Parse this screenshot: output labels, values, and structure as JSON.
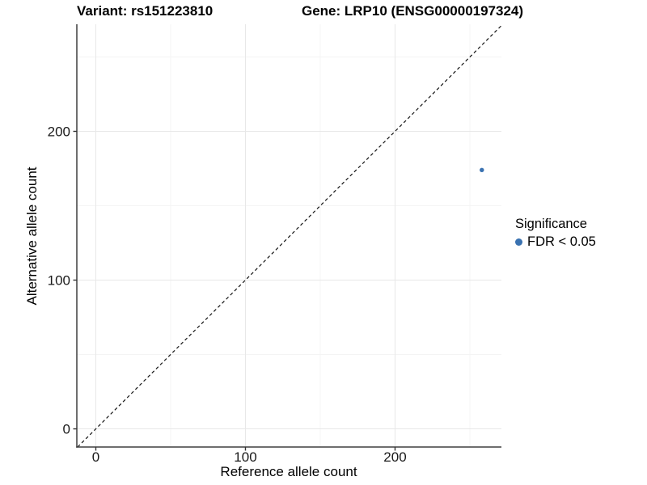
{
  "figure": {
    "title_left": "Variant: rs151223810",
    "title_right": "Gene: LRP10 (ENSG00000197324)"
  },
  "axes": {
    "x_label": "Reference allele count",
    "y_label": "Alternative allele count"
  },
  "legend": {
    "title": "Significance",
    "items": [
      {
        "label": "FDR < 0.05",
        "color": "#3a72b1"
      }
    ]
  },
  "colors": {
    "point": "#3a72b1",
    "axis_line": "#3f3f3f",
    "tick_mark": "#333333",
    "tick_label": "#1a1a1a",
    "grid_major": "#e8e8e8",
    "grid_minor": "#f4f4f4",
    "reference_line": "#141414",
    "background": "#ffffff"
  },
  "chart_data": {
    "type": "scatter",
    "title": "Variant: rs151223810   Gene: LRP10 (ENSG00000197324)",
    "xlabel": "Reference allele count",
    "ylabel": "Alternative allele count",
    "xlim": [
      -12.7,
      271.1
    ],
    "ylim": [
      -12.2,
      272.0
    ],
    "x_ticks": [
      0,
      100,
      200
    ],
    "y_ticks": [
      0,
      100,
      200
    ],
    "x_minor_ticks": [
      50,
      150,
      250
    ],
    "y_minor_ticks": [
      50,
      150,
      250
    ],
    "grid": true,
    "legend_position": "right",
    "legend_title": "Significance",
    "series": [
      {
        "name": "FDR < 0.05",
        "color": "#3a72b1",
        "points": [
          {
            "x": 258,
            "y": 174
          }
        ]
      }
    ],
    "reference_line": {
      "type": "identity",
      "slope": 1,
      "intercept": 0,
      "style": "dashed"
    }
  }
}
